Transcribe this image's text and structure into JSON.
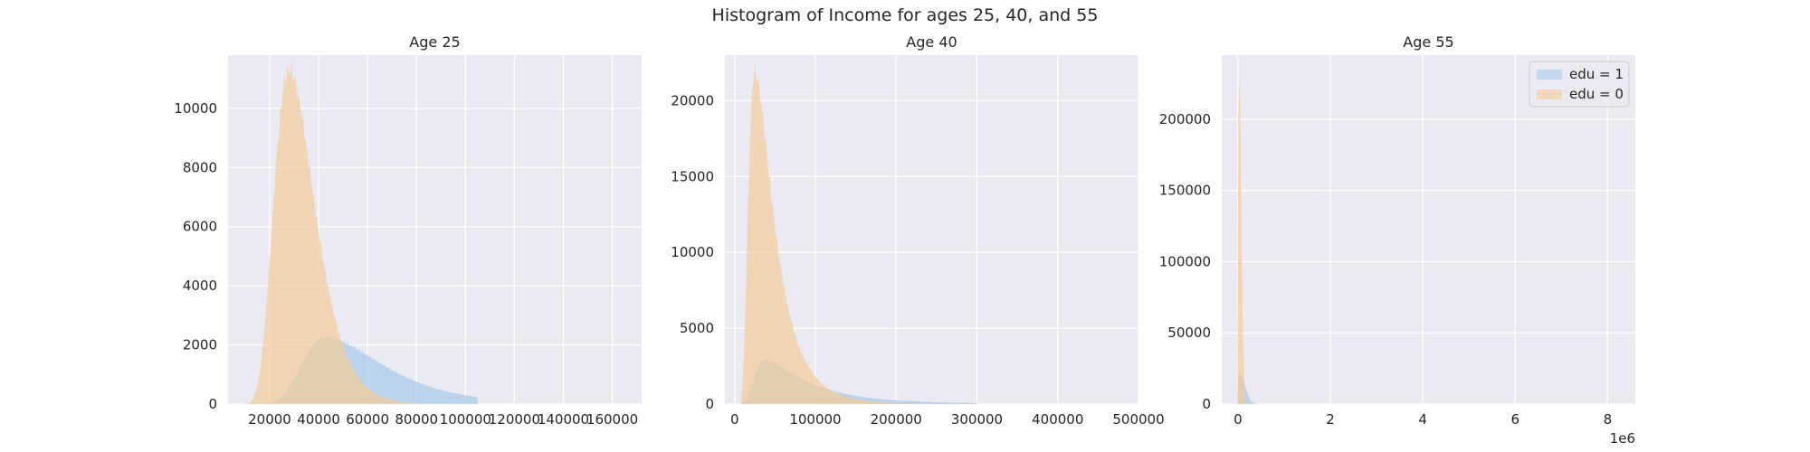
{
  "suptitle": "Histogram of Income for ages 25, 40, and 55",
  "colors": {
    "edu1": "#a9c9ea",
    "edu0": "#f4cb99",
    "axes_bg": "#eaeaf2",
    "grid": "#ffffff"
  },
  "chart_data": [
    {
      "type": "histogram",
      "title": "Age 25",
      "xlim": [
        3000,
        172000
      ],
      "ylim": [
        0,
        11800
      ],
      "xticks": [
        20000,
        40000,
        60000,
        80000,
        100000,
        120000,
        140000,
        160000
      ],
      "xtick_labels": [
        "20000",
        "40000",
        "60000",
        "80000",
        "100000",
        "120000",
        "140000",
        "160000"
      ],
      "yticks": [
        0,
        2000,
        4000,
        6000,
        8000,
        10000
      ],
      "ytick_labels": [
        "0",
        "2000",
        "4000",
        "6000",
        "8000",
        "10000"
      ],
      "grid": true,
      "series": [
        {
          "legend": "edu = 1",
          "color": "#a9c9ea",
          "shape": "lognormal",
          "peak_x": 43000,
          "peak_y": 2250,
          "sigma_left": 0.26,
          "sigma_right": 0.42,
          "x_min": 12000,
          "x_max": 105000
        },
        {
          "legend": "edu = 0",
          "color": "#f4cb99",
          "shape": "lognormal",
          "peak_x": 28000,
          "peak_y": 11300,
          "sigma_left": 0.26,
          "sigma_right": 0.31,
          "x_min": 6000,
          "x_max": 80000
        }
      ]
    },
    {
      "type": "histogram",
      "title": "Age 40",
      "xlim": [
        -12000,
        500000
      ],
      "ylim": [
        0,
        23000
      ],
      "xticks": [
        0,
        100000,
        200000,
        300000,
        400000,
        500000
      ],
      "xtick_labels": [
        "0",
        "100000",
        "200000",
        "300000",
        "400000",
        "500000"
      ],
      "yticks": [
        0,
        5000,
        10000,
        15000,
        20000
      ],
      "ytick_labels": [
        "0",
        "5000",
        "10000",
        "15000",
        "20000"
      ],
      "grid": true,
      "series": [
        {
          "legend": "edu = 1",
          "color": "#a9c9ea",
          "shape": "lognormal",
          "peak_x": 38000,
          "peak_y": 2900,
          "sigma_left": 0.45,
          "sigma_right": 0.75,
          "x_min": 10000,
          "x_max": 300000
        },
        {
          "legend": "edu = 0",
          "color": "#f4cb99",
          "shape": "lognormal",
          "peak_x": 25000,
          "peak_y": 21900,
          "sigma_left": 0.4,
          "sigma_right": 0.62,
          "x_min": 8000,
          "x_max": 230000
        }
      ]
    },
    {
      "type": "histogram",
      "title": "Age 55",
      "xlim": [
        -0.35,
        8.6
      ],
      "ylim": [
        0,
        245000
      ],
      "xticks": [
        0,
        2,
        4,
        6,
        8
      ],
      "xtick_labels": [
        "0",
        "2",
        "4",
        "6",
        "8"
      ],
      "x_offset_label": "1e6",
      "yticks": [
        0,
        50000,
        100000,
        150000,
        200000
      ],
      "ytick_labels": [
        "0",
        "50000",
        "100000",
        "150000",
        "200000"
      ],
      "grid": true,
      "legend_position": "top-right",
      "legend": [
        "edu = 1",
        "edu = 0"
      ],
      "series": [
        {
          "legend": "edu = 1",
          "color": "#a9c9ea",
          "shape": "spike",
          "peak_x": 0.03,
          "peak_y": 22000,
          "spread": 0.12,
          "x_max": 0.6
        },
        {
          "legend": "edu = 0",
          "color": "#f4cb99",
          "shape": "spike",
          "peak_x": 0.02,
          "peak_y": 235000,
          "spread": 0.05,
          "x_max": 0.4
        }
      ]
    }
  ]
}
